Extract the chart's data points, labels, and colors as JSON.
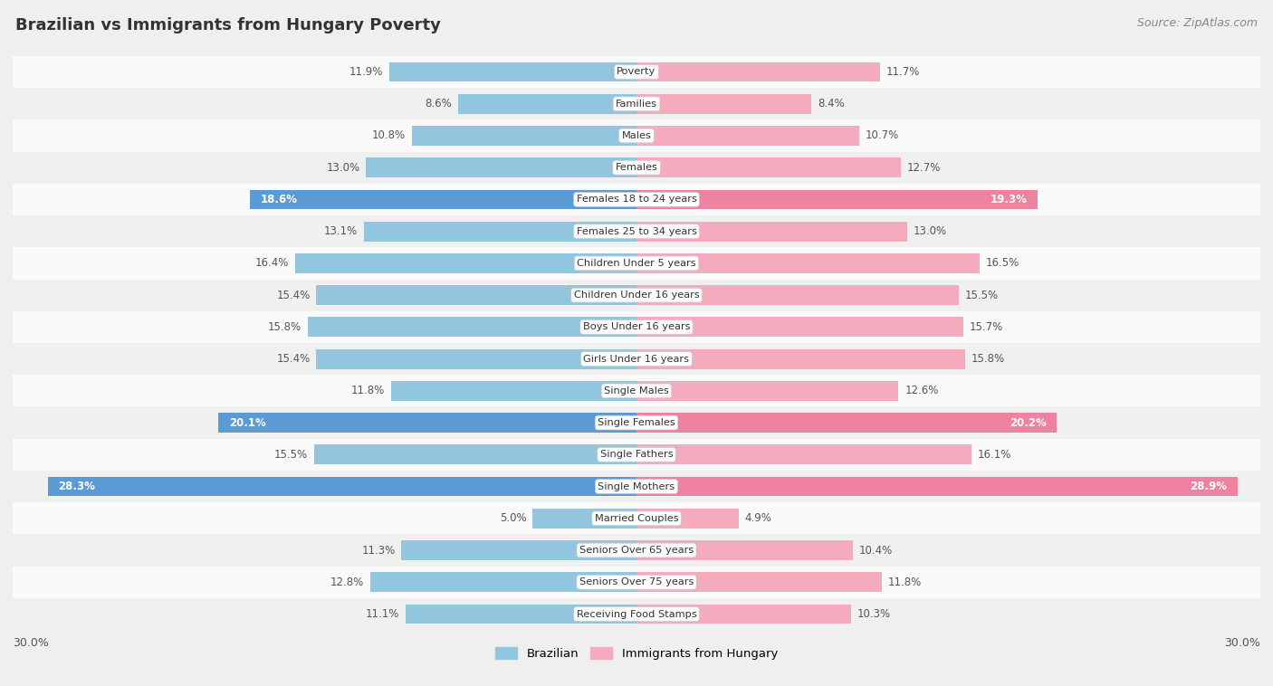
{
  "title": "Brazilian vs Immigrants from Hungary Poverty",
  "source": "Source: ZipAtlas.com",
  "categories": [
    "Poverty",
    "Families",
    "Males",
    "Females",
    "Females 18 to 24 years",
    "Females 25 to 34 years",
    "Children Under 5 years",
    "Children Under 16 years",
    "Boys Under 16 years",
    "Girls Under 16 years",
    "Single Males",
    "Single Females",
    "Single Fathers",
    "Single Mothers",
    "Married Couples",
    "Seniors Over 65 years",
    "Seniors Over 75 years",
    "Receiving Food Stamps"
  ],
  "brazilian": [
    11.9,
    8.6,
    10.8,
    13.0,
    18.6,
    13.1,
    16.4,
    15.4,
    15.8,
    15.4,
    11.8,
    20.1,
    15.5,
    28.3,
    5.0,
    11.3,
    12.8,
    11.1
  ],
  "hungary": [
    11.7,
    8.4,
    10.7,
    12.7,
    19.3,
    13.0,
    16.5,
    15.5,
    15.7,
    15.8,
    12.6,
    20.2,
    16.1,
    28.9,
    4.9,
    10.4,
    11.8,
    10.3
  ],
  "max_val": 30.0,
  "bar_height": 0.62,
  "blue_normal": "#92C5DE",
  "pink_normal": "#F4ABBE",
  "blue_highlight": "#5B9BD5",
  "pink_highlight": "#EE82A0",
  "bg_color": "#EFEFEF",
  "row_colors": [
    "#FAFAFA",
    "#F0F0F0"
  ],
  "highlight_threshold": 18.0,
  "label_fontsize": 8.5,
  "cat_fontsize": 8.2,
  "title_fontsize": 13,
  "source_fontsize": 9
}
